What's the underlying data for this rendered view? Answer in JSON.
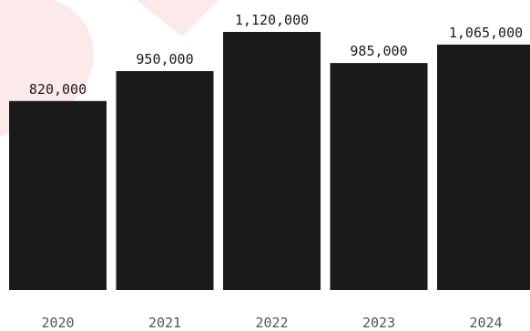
{
  "chart_data": {
    "type": "bar",
    "categories": [
      "2020",
      "2021",
      "2022",
      "2023",
      "2024"
    ],
    "values": [
      820000,
      950000,
      1120000,
      985000,
      1065000
    ],
    "value_labels": [
      "820,000",
      "950,000",
      "1,120,000",
      "985,000",
      "1,065,000"
    ],
    "ylim": [
      0,
      1120000
    ],
    "grid": false,
    "legend": "none"
  },
  "colors": {
    "bar": "#1a1a1a",
    "value_text": "#1a1a1a",
    "category_text": "#555555",
    "watermark": "#fbe3e3"
  }
}
